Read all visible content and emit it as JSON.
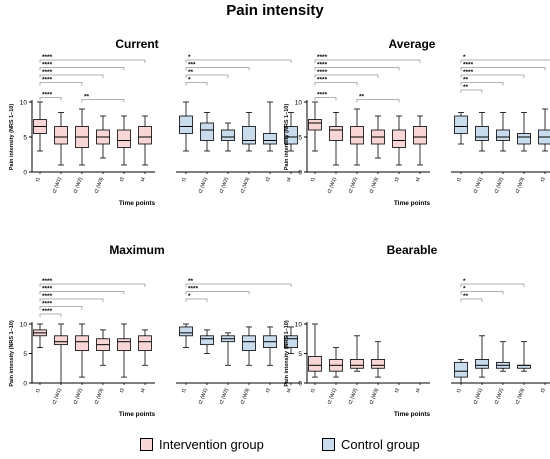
{
  "title": "Pain intensity",
  "colors": {
    "intervention": "#f8d6d6",
    "control": "#c9dcee",
    "line": "#000000",
    "bracket": "#999999"
  },
  "legend": {
    "intervention": "Intervention group",
    "control": "Control group"
  },
  "chart_data": [
    {
      "type": "boxplot",
      "title": "Current",
      "xlabel": "Time points",
      "ylabel": "Pain intensity (NRS 1–10)",
      "ylim": [
        0,
        10
      ],
      "yticks": [
        0,
        5,
        10
      ],
      "groups": [
        {
          "name": "Intervention group",
          "categories": [
            "t1",
            "t2 (W1)",
            "t2 (W2)",
            "t2 (W3)",
            "t3",
            "t4"
          ],
          "boxes": [
            {
              "min": 3,
              "q1": 5.5,
              "median": 6.5,
              "q3": 7.5,
              "max": 10
            },
            {
              "min": 1,
              "q1": 4,
              "median": 5,
              "q3": 6.5,
              "max": 8.5
            },
            {
              "min": 1,
              "q1": 3.5,
              "median": 5,
              "q3": 6.5,
              "max": 9
            },
            {
              "min": 2,
              "q1": 4,
              "median": 5,
              "q3": 6,
              "max": 8
            },
            {
              "min": 1,
              "q1": 3.5,
              "median": 4.5,
              "q3": 6,
              "max": 8
            },
            {
              "min": 1,
              "q1": 4,
              "median": 5,
              "q3": 6.5,
              "max": 8
            }
          ]
        },
        {
          "name": "Control group",
          "categories": [
            "t1",
            "t2 (W1)",
            "t2 (W2)",
            "t2 (W3)",
            "t3",
            "t4"
          ],
          "boxes": [
            {
              "min": 3,
              "q1": 5.5,
              "median": 6.5,
              "q3": 8,
              "max": 10
            },
            {
              "min": 3,
              "q1": 4.5,
              "median": 6,
              "q3": 7,
              "max": 8.5
            },
            {
              "min": 3,
              "q1": 4.5,
              "median": 5,
              "q3": 6,
              "max": 7
            },
            {
              "min": 3,
              "q1": 4,
              "median": 4.5,
              "q3": 6.5,
              "max": 8.5
            },
            {
              "min": 3,
              "q1": 4,
              "median": 4.5,
              "q3": 5.5,
              "max": 10
            },
            {
              "min": 3,
              "q1": 4,
              "median": 5,
              "q3": 6.5,
              "max": 8.5
            }
          ]
        }
      ],
      "annotations": [
        {
          "group": 0,
          "from": 0,
          "to": 5,
          "label": "****"
        },
        {
          "group": 0,
          "from": 0,
          "to": 4,
          "label": "****"
        },
        {
          "group": 0,
          "from": 0,
          "to": 3,
          "label": "****"
        },
        {
          "group": 0,
          "from": 0,
          "to": 2,
          "label": "****"
        },
        {
          "group": 0,
          "from": 0,
          "to": 1,
          "label": "****"
        },
        {
          "group": 0,
          "from": 2,
          "to": 4,
          "label": "**"
        },
        {
          "group": 1,
          "from": 0,
          "to": 5,
          "label": "*"
        },
        {
          "group": 1,
          "from": 0,
          "to": 3,
          "label": "***"
        },
        {
          "group": 1,
          "from": 0,
          "to": 2,
          "label": "**"
        },
        {
          "group": 1,
          "from": 0,
          "to": 1,
          "label": "*"
        }
      ]
    },
    {
      "type": "boxplot",
      "title": "Average",
      "xlabel": "Time points",
      "ylabel": "Pain intensity (NRS 1–10)",
      "ylim": [
        0,
        10
      ],
      "yticks": [
        0,
        5,
        10
      ],
      "groups": [
        {
          "name": "Intervention group",
          "categories": [
            "t1",
            "t2 (W1)",
            "t2 (W2)",
            "t2 (W3)",
            "t3",
            "t4"
          ],
          "boxes": [
            {
              "min": 3,
              "q1": 6,
              "median": 7,
              "q3": 7.5,
              "max": 10
            },
            {
              "min": 1,
              "q1": 4.5,
              "median": 6,
              "q3": 6.5,
              "max": 8.5
            },
            {
              "min": 1,
              "q1": 4,
              "median": 5,
              "q3": 6.5,
              "max": 9
            },
            {
              "min": 2,
              "q1": 4,
              "median": 5,
              "q3": 6,
              "max": 8
            },
            {
              "min": 1,
              "q1": 3.5,
              "median": 4.5,
              "q3": 6,
              "max": 8
            },
            {
              "min": 1,
              "q1": 4,
              "median": 5,
              "q3": 6.5,
              "max": 8
            }
          ]
        },
        {
          "name": "Control group",
          "categories": [
            "t1",
            "t2 (W1)",
            "t2 (W2)",
            "t2 (W3)",
            "t3",
            "t4"
          ],
          "boxes": [
            {
              "min": 4,
              "q1": 5.5,
              "median": 6.5,
              "q3": 8,
              "max": 8.5
            },
            {
              "min": 3,
              "q1": 4.5,
              "median": 5,
              "q3": 6.5,
              "max": 8.5
            },
            {
              "min": 3,
              "q1": 4.5,
              "median": 5,
              "q3": 6,
              "max": 8.5
            },
            {
              "min": 3,
              "q1": 4,
              "median": 5,
              "q3": 5.5,
              "max": 8.5
            },
            {
              "min": 3,
              "q1": 4,
              "median": 5,
              "q3": 6,
              "max": 9
            },
            {
              "min": 3,
              "q1": 4,
              "median": 5,
              "q3": 6,
              "max": 10
            }
          ]
        }
      ],
      "annotations": [
        {
          "group": 0,
          "from": 0,
          "to": 5,
          "label": "****"
        },
        {
          "group": 0,
          "from": 0,
          "to": 4,
          "label": "****"
        },
        {
          "group": 0,
          "from": 0,
          "to": 3,
          "label": "****"
        },
        {
          "group": 0,
          "from": 0,
          "to": 2,
          "label": "****"
        },
        {
          "group": 0,
          "from": 0,
          "to": 1,
          "label": "****"
        },
        {
          "group": 0,
          "from": 2,
          "to": 4,
          "label": "**"
        },
        {
          "group": 1,
          "from": 0,
          "to": 5,
          "label": "*"
        },
        {
          "group": 1,
          "from": 0,
          "to": 4,
          "label": "****"
        },
        {
          "group": 1,
          "from": 0,
          "to": 3,
          "label": "****"
        },
        {
          "group": 1,
          "from": 0,
          "to": 2,
          "label": "**"
        },
        {
          "group": 1,
          "from": 0,
          "to": 1,
          "label": "**"
        }
      ]
    },
    {
      "type": "boxplot",
      "title": "Maximum",
      "xlabel": "Time points",
      "ylabel": "Pain intensity (NRS 1–10)",
      "ylim": [
        0,
        10
      ],
      "yticks": [
        0,
        5,
        10
      ],
      "groups": [
        {
          "name": "Intervention group",
          "categories": [
            "t1",
            "t2 (W1)",
            "t2 (W2)",
            "t2 (W3)",
            "t3",
            "t4"
          ],
          "boxes": [
            {
              "min": 6,
              "q1": 8,
              "median": 8.5,
              "q3": 9,
              "max": 10
            },
            {
              "min": 0,
              "q1": 6.5,
              "median": 7,
              "q3": 8,
              "max": 10
            },
            {
              "min": 1,
              "q1": 5.5,
              "median": 7,
              "q3": 8,
              "max": 10
            },
            {
              "min": 3,
              "q1": 5.5,
              "median": 6.5,
              "q3": 7.5,
              "max": 9
            },
            {
              "min": 1,
              "q1": 5.5,
              "median": 7,
              "q3": 7.5,
              "max": 10
            },
            {
              "min": 3,
              "q1": 5.5,
              "median": 7,
              "q3": 8,
              "max": 9
            }
          ]
        },
        {
          "name": "Control group",
          "categories": [
            "t1",
            "t2 (W1)",
            "t2 (W2)",
            "t2 (W3)",
            "t3",
            "t4"
          ],
          "boxes": [
            {
              "min": 6,
              "q1": 8,
              "median": 8.5,
              "q3": 9.5,
              "max": 10
            },
            {
              "min": 5,
              "q1": 6.5,
              "median": 7.5,
              "q3": 8,
              "max": 9
            },
            {
              "min": 3,
              "q1": 7,
              "median": 7.5,
              "q3": 8,
              "max": 8.5
            },
            {
              "min": 3,
              "q1": 5.5,
              "median": 7,
              "q3": 8,
              "max": 9.5
            },
            {
              "min": 3,
              "q1": 6,
              "median": 7,
              "q3": 8,
              "max": 9.5
            },
            {
              "min": 5,
              "q1": 6,
              "median": 7.5,
              "q3": 8,
              "max": 9.5
            }
          ]
        }
      ],
      "annotations": [
        {
          "group": 0,
          "from": 0,
          "to": 5,
          "label": "****"
        },
        {
          "group": 0,
          "from": 0,
          "to": 4,
          "label": "****"
        },
        {
          "group": 0,
          "from": 0,
          "to": 3,
          "label": "****"
        },
        {
          "group": 0,
          "from": 0,
          "to": 2,
          "label": "****"
        },
        {
          "group": 0,
          "from": 0,
          "to": 1,
          "label": "****"
        },
        {
          "group": 1,
          "from": 0,
          "to": 5,
          "label": "**"
        },
        {
          "group": 1,
          "from": 0,
          "to": 3,
          "label": "****"
        },
        {
          "group": 1,
          "from": 0,
          "to": 1,
          "label": "*"
        }
      ]
    },
    {
      "type": "boxplot",
      "title": "Bearable",
      "xlabel": "Time points",
      "ylabel": "Pain intensity (NRS 1–10)",
      "ylim": [
        0,
        10
      ],
      "yticks": [
        0,
        5,
        10
      ],
      "groups": [
        {
          "name": "Intervention group",
          "categories": [
            "t1",
            "t2 (W1)",
            "t2 (W2)",
            "t2 (W3)",
            "t3",
            "t4"
          ],
          "boxes": [
            {
              "min": 1,
              "q1": 2,
              "median": 3,
              "q3": 4.5,
              "max": 10
            },
            {
              "min": 1,
              "q1": 2,
              "median": 3,
              "q3": 4,
              "max": 6
            },
            {
              "min": 2,
              "q1": 2.5,
              "median": 3,
              "q3": 4,
              "max": 8
            },
            {
              "min": 1,
              "q1": 2.5,
              "median": 3,
              "q3": 4,
              "max": 7
            },
            null,
            null
          ]
        },
        {
          "name": "Control group",
          "categories": [
            "t1",
            "t2 (W1)",
            "t2 (W2)",
            "t2 (W3)",
            "t3",
            "t4"
          ],
          "boxes": [
            {
              "min": 0,
              "q1": 1,
              "median": 2,
              "q3": 3.5,
              "max": 4
            },
            {
              "min": 1,
              "q1": 2.5,
              "median": 3,
              "q3": 4,
              "max": 8
            },
            {
              "min": 2,
              "q1": 2.5,
              "median": 3,
              "q3": 3.5,
              "max": 7
            },
            {
              "min": 2,
              "q1": 2.5,
              "median": 3,
              "q3": 3,
              "max": 7
            },
            null,
            null
          ]
        }
      ],
      "annotations": [
        {
          "group": 1,
          "from": 0,
          "to": 3,
          "label": "*"
        },
        {
          "group": 1,
          "from": 0,
          "to": 2,
          "label": "*"
        },
        {
          "group": 1,
          "from": 0,
          "to": 1,
          "label": "**"
        }
      ]
    }
  ]
}
